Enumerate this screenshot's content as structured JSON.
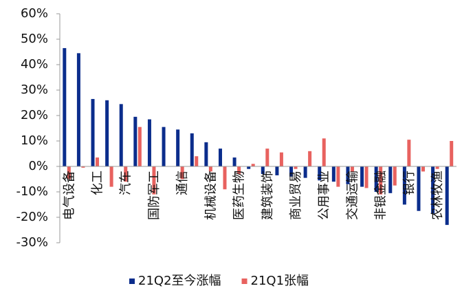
{
  "chart_data": {
    "type": "bar",
    "categories": [
      "电气设备",
      null,
      "化工",
      null,
      "汽车",
      null,
      "国防军工",
      null,
      "通信",
      null,
      "机械设备",
      null,
      "医药生物",
      null,
      "建筑装饰",
      null,
      "商业贸易",
      null,
      "公用事业",
      null,
      "交通运输",
      null,
      "非银金融",
      null,
      "银行",
      null,
      "农林牧渔",
      null
    ],
    "series": [
      {
        "name": "21Q2至今涨幅",
        "color": "#0b2d8c",
        "values": [
          46.5,
          44.5,
          26.5,
          26,
          24.5,
          19.5,
          18.5,
          15.5,
          14.5,
          13,
          9.5,
          7,
          3.5,
          -1,
          -3,
          -3.5,
          -4,
          -4.5,
          -5.5,
          -6,
          -7,
          -8,
          -10,
          -10.5,
          -15,
          -17.5,
          -18.5,
          -23
        ]
      },
      {
        "name": "21Q1张幅",
        "color": "#e8625f",
        "values": [
          -5,
          -0.5,
          3.5,
          -8,
          -6,
          15.5,
          -11,
          0,
          -5,
          4,
          -2,
          -9,
          -3,
          1,
          7,
          5.5,
          -1,
          6,
          11,
          -8,
          -2,
          -8.5,
          -11,
          -7.5,
          10.5,
          -2,
          -1,
          10
        ]
      }
    ],
    "ylim": [
      -30,
      60
    ],
    "yticks": [
      {
        "value": -30,
        "label": "-30%"
      },
      {
        "value": -20,
        "label": "-20%"
      },
      {
        "value": -10,
        "label": "-10%"
      },
      {
        "value": 0,
        "label": "0%"
      },
      {
        "value": 10,
        "label": "10%"
      },
      {
        "value": 20,
        "label": "20%"
      },
      {
        "value": 30,
        "label": "30%"
      },
      {
        "value": 40,
        "label": "40%"
      },
      {
        "value": 50,
        "label": "50%"
      },
      {
        "value": 60,
        "label": "60%"
      }
    ],
    "legend": "bottom"
  }
}
